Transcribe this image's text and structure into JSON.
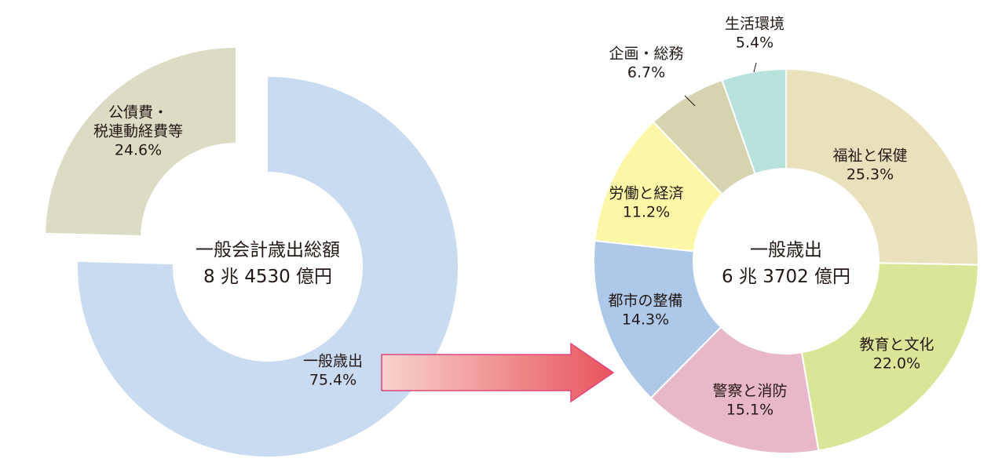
{
  "chart_data": [
    {
      "type": "pie",
      "center_label": "一般会計歳出総額",
      "center_value": "8 兆 4530 億円",
      "slices": [
        {
          "label": [
            "一般歳出"
          ],
          "value": 75.4,
          "value_label": "75.4%",
          "color": "#c9dbf0",
          "exploded": false
        },
        {
          "label": [
            "公債費・",
            "税連動経費等"
          ],
          "value": 24.6,
          "value_label": "24.6%",
          "color": "#dcdbc4",
          "exploded": true
        }
      ]
    },
    {
      "type": "pie",
      "center_label": "一般歳出",
      "center_value": "6 兆 3702 億円",
      "slices": [
        {
          "label": [
            "福祉と保健"
          ],
          "value": 25.3,
          "value_label": "25.3%",
          "color": "#e9e1bb"
        },
        {
          "label": [
            "教育と文化"
          ],
          "value": 22.0,
          "value_label": "22.0%",
          "color": "#dbe597"
        },
        {
          "label": [
            "警察と消防"
          ],
          "value": 15.1,
          "value_label": "15.1%",
          "color": "#e8b7c9"
        },
        {
          "label": [
            "都市の整備"
          ],
          "value": 14.3,
          "value_label": "14.3%",
          "color": "#adc8e9"
        },
        {
          "label": [
            "労働と経済"
          ],
          "value": 11.2,
          "value_label": "11.2%",
          "color": "#fbf7a6"
        },
        {
          "label": [
            "企画・総務"
          ],
          "value": 6.7,
          "value_label": "6.7%",
          "color": "#d5d3b0"
        },
        {
          "label": [
            "生活環境"
          ],
          "value": 5.4,
          "value_label": "5.4%",
          "color": "#b8e2dc"
        }
      ]
    }
  ],
  "arrow": {
    "color_start": "#f8d3cc",
    "color_end": "#e8545c",
    "border": "#e0457f"
  }
}
